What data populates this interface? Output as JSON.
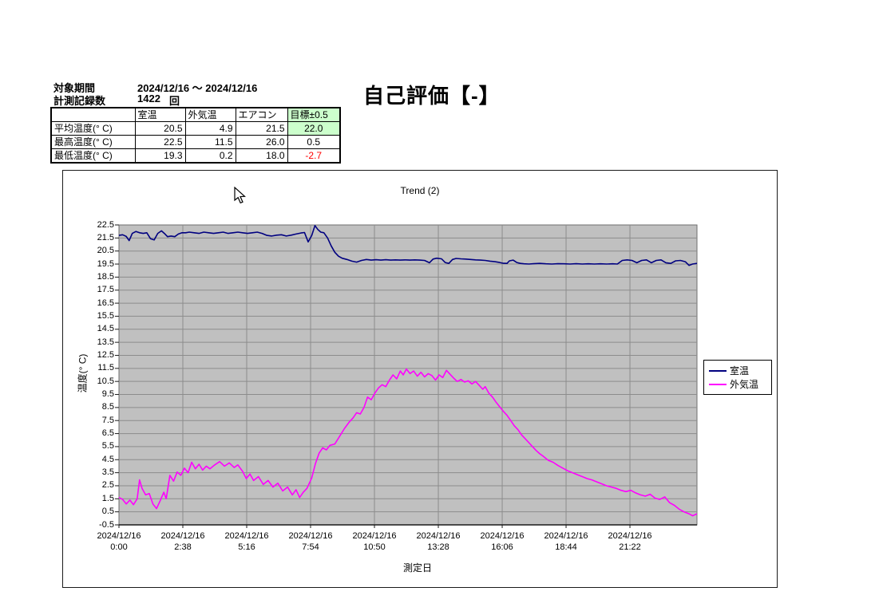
{
  "header": {
    "period_label": "対象期間",
    "period_value": "2024/12/16  ～  2024/12/16",
    "count_label": "計測記録数",
    "count_value": "1422",
    "count_unit": "回",
    "evaluation_title": "自己評価【-】"
  },
  "stats_table": {
    "columns": [
      "",
      "室温",
      "外気温",
      "エアコン",
      "目標±0.5"
    ],
    "rows": [
      {
        "label": "平均温度(° C)",
        "room": "20.5",
        "outside": "4.9",
        "aircon": "21.5",
        "target": "22.0"
      },
      {
        "label": "最高温度(° C)",
        "room": "22.5",
        "outside": "11.5",
        "aircon": "26.0",
        "target": "0.5"
      },
      {
        "label": "最低温度(° C)",
        "room": "19.3",
        "outside": "0.2",
        "aircon": "18.0",
        "target": "-2.7"
      }
    ],
    "highlight_color": "#ccffcc",
    "negative_color": "#ff0000"
  },
  "chart_data": {
    "type": "line",
    "title": "Trend (2)",
    "xlabel": "測定日",
    "ylabel": "温度(° C)",
    "ylim": [
      -0.5,
      22.5
    ],
    "y_tick_step": 1.0,
    "y_ticks": [
      "22.5",
      "21.5",
      "20.5",
      "19.5",
      "18.5",
      "17.5",
      "16.5",
      "15.5",
      "14.5",
      "13.5",
      "12.5",
      "11.5",
      "10.5",
      "9.5",
      "8.5",
      "7.5",
      "6.5",
      "5.5",
      "4.5",
      "3.5",
      "2.5",
      "1.5",
      "0.5",
      "-0.5"
    ],
    "xlim_hours": [
      0,
      23.83
    ],
    "x_tick_interval_hours": 2.6333,
    "x_tick_dates": [
      "2024/12/16",
      "2024/12/16",
      "2024/12/16",
      "2024/12/16",
      "2024/12/16",
      "2024/12/16",
      "2024/12/16",
      "2024/12/16",
      "2024/12/16"
    ],
    "x_tick_times": [
      "0:00",
      "2:38",
      "5:16",
      "7:54",
      "10:50",
      "13:28",
      "16:06",
      "18:44",
      "21:22"
    ],
    "plot_bg": "#c0c0c0",
    "grid_color": "#8c8c8c",
    "axis_color": "#1a1a1a",
    "legend_position": "right",
    "grid": true,
    "legend": [
      "室温",
      "外気温"
    ],
    "series": [
      {
        "name": "室温",
        "color": "#000080",
        "points": [
          [
            0,
            21.7
          ],
          [
            0.15,
            21.75
          ],
          [
            0.3,
            21.62
          ],
          [
            0.42,
            21.3
          ],
          [
            0.55,
            21.85
          ],
          [
            0.7,
            22.0
          ],
          [
            0.85,
            21.9
          ],
          [
            1.0,
            21.85
          ],
          [
            1.15,
            21.9
          ],
          [
            1.3,
            21.45
          ],
          [
            1.45,
            21.35
          ],
          [
            1.6,
            21.85
          ],
          [
            1.75,
            22.05
          ],
          [
            1.9,
            21.8
          ],
          [
            2.0,
            21.6
          ],
          [
            2.15,
            21.65
          ],
          [
            2.3,
            21.6
          ],
          [
            2.45,
            21.8
          ],
          [
            2.6,
            21.9
          ],
          [
            2.75,
            21.9
          ],
          [
            2.9,
            21.95
          ],
          [
            3.1,
            21.9
          ],
          [
            3.3,
            21.85
          ],
          [
            3.5,
            21.95
          ],
          [
            3.7,
            21.9
          ],
          [
            3.9,
            21.85
          ],
          [
            4.1,
            21.9
          ],
          [
            4.3,
            21.95
          ],
          [
            4.5,
            21.85
          ],
          [
            4.7,
            21.9
          ],
          [
            4.9,
            21.95
          ],
          [
            5.1,
            21.9
          ],
          [
            5.3,
            21.85
          ],
          [
            5.5,
            21.9
          ],
          [
            5.7,
            21.95
          ],
          [
            5.9,
            21.85
          ],
          [
            6.1,
            21.7
          ],
          [
            6.3,
            21.65
          ],
          [
            6.5,
            21.72
          ],
          [
            6.7,
            21.75
          ],
          [
            6.9,
            21.65
          ],
          [
            7.1,
            21.72
          ],
          [
            7.3,
            21.8
          ],
          [
            7.5,
            21.88
          ],
          [
            7.65,
            21.92
          ],
          [
            7.8,
            21.2
          ],
          [
            7.95,
            21.7
          ],
          [
            8.08,
            22.45
          ],
          [
            8.2,
            22.15
          ],
          [
            8.32,
            21.95
          ],
          [
            8.45,
            21.9
          ],
          [
            8.6,
            21.5
          ],
          [
            8.75,
            20.9
          ],
          [
            8.9,
            20.4
          ],
          [
            9.05,
            20.1
          ],
          [
            9.2,
            19.95
          ],
          [
            9.4,
            19.85
          ],
          [
            9.6,
            19.72
          ],
          [
            9.8,
            19.65
          ],
          [
            10.0,
            19.78
          ],
          [
            10.2,
            19.85
          ],
          [
            10.4,
            19.8
          ],
          [
            10.6,
            19.83
          ],
          [
            10.8,
            19.8
          ],
          [
            11.0,
            19.83
          ],
          [
            11.2,
            19.8
          ],
          [
            11.4,
            19.82
          ],
          [
            11.6,
            19.8
          ],
          [
            11.8,
            19.82
          ],
          [
            12.0,
            19.8
          ],
          [
            12.2,
            19.82
          ],
          [
            12.4,
            19.8
          ],
          [
            12.6,
            19.78
          ],
          [
            12.8,
            19.6
          ],
          [
            12.95,
            19.88
          ],
          [
            13.1,
            19.95
          ],
          [
            13.3,
            19.9
          ],
          [
            13.45,
            19.62
          ],
          [
            13.6,
            19.55
          ],
          [
            13.75,
            19.85
          ],
          [
            13.9,
            19.93
          ],
          [
            14.1,
            19.9
          ],
          [
            14.3,
            19.88
          ],
          [
            14.5,
            19.85
          ],
          [
            14.7,
            19.82
          ],
          [
            14.9,
            19.8
          ],
          [
            15.1,
            19.78
          ],
          [
            15.3,
            19.72
          ],
          [
            15.5,
            19.68
          ],
          [
            15.7,
            19.62
          ],
          [
            15.85,
            19.56
          ],
          [
            16.0,
            19.55
          ],
          [
            16.1,
            19.75
          ],
          [
            16.25,
            19.8
          ],
          [
            16.4,
            19.62
          ],
          [
            16.55,
            19.55
          ],
          [
            16.7,
            19.52
          ],
          [
            16.9,
            19.5
          ],
          [
            17.1,
            19.53
          ],
          [
            17.35,
            19.55
          ],
          [
            17.6,
            19.52
          ],
          [
            17.85,
            19.5
          ],
          [
            18.1,
            19.53
          ],
          [
            18.35,
            19.52
          ],
          [
            18.6,
            19.5
          ],
          [
            18.85,
            19.53
          ],
          [
            19.1,
            19.5
          ],
          [
            19.35,
            19.52
          ],
          [
            19.6,
            19.5
          ],
          [
            19.85,
            19.52
          ],
          [
            20.1,
            19.5
          ],
          [
            20.35,
            19.52
          ],
          [
            20.55,
            19.5
          ],
          [
            20.75,
            19.78
          ],
          [
            20.95,
            19.82
          ],
          [
            21.15,
            19.78
          ],
          [
            21.35,
            19.6
          ],
          [
            21.55,
            19.78
          ],
          [
            21.75,
            19.82
          ],
          [
            21.95,
            19.6
          ],
          [
            22.15,
            19.78
          ],
          [
            22.35,
            19.82
          ],
          [
            22.55,
            19.6
          ],
          [
            22.75,
            19.55
          ],
          [
            22.95,
            19.75
          ],
          [
            23.15,
            19.78
          ],
          [
            23.35,
            19.68
          ],
          [
            23.5,
            19.4
          ],
          [
            23.65,
            19.5
          ],
          [
            23.83,
            19.55
          ]
        ]
      },
      {
        "name": "外気温",
        "color": "#ff00ff",
        "points": [
          [
            0,
            1.6
          ],
          [
            0.15,
            1.45
          ],
          [
            0.3,
            1.1
          ],
          [
            0.45,
            1.4
          ],
          [
            0.6,
            1.05
          ],
          [
            0.75,
            1.5
          ],
          [
            0.85,
            2.95
          ],
          [
            0.95,
            2.3
          ],
          [
            1.1,
            1.8
          ],
          [
            1.25,
            1.9
          ],
          [
            1.4,
            1.1
          ],
          [
            1.55,
            0.75
          ],
          [
            1.7,
            1.35
          ],
          [
            1.85,
            2.0
          ],
          [
            1.95,
            1.5
          ],
          [
            2.1,
            3.3
          ],
          [
            2.25,
            2.85
          ],
          [
            2.4,
            3.55
          ],
          [
            2.55,
            3.3
          ],
          [
            2.7,
            3.85
          ],
          [
            2.85,
            3.5
          ],
          [
            3.0,
            4.3
          ],
          [
            3.15,
            3.8
          ],
          [
            3.3,
            4.15
          ],
          [
            3.45,
            3.7
          ],
          [
            3.6,
            4.0
          ],
          [
            3.75,
            3.8
          ],
          [
            3.95,
            4.1
          ],
          [
            4.15,
            4.35
          ],
          [
            4.35,
            4.0
          ],
          [
            4.55,
            4.25
          ],
          [
            4.75,
            3.9
          ],
          [
            4.9,
            4.1
          ],
          [
            5.1,
            3.6
          ],
          [
            5.25,
            3.05
          ],
          [
            5.4,
            3.4
          ],
          [
            5.55,
            2.9
          ],
          [
            5.75,
            3.2
          ],
          [
            5.95,
            2.6
          ],
          [
            6.15,
            2.9
          ],
          [
            6.35,
            2.4
          ],
          [
            6.55,
            2.7
          ],
          [
            6.75,
            2.1
          ],
          [
            6.95,
            2.4
          ],
          [
            7.15,
            1.8
          ],
          [
            7.3,
            2.2
          ],
          [
            7.45,
            1.6
          ],
          [
            7.6,
            2.0
          ],
          [
            7.75,
            2.3
          ],
          [
            7.95,
            3.1
          ],
          [
            8.1,
            4.2
          ],
          [
            8.25,
            5.0
          ],
          [
            8.4,
            5.4
          ],
          [
            8.55,
            5.25
          ],
          [
            8.7,
            5.6
          ],
          [
            8.9,
            5.7
          ],
          [
            9.1,
            6.3
          ],
          [
            9.3,
            6.9
          ],
          [
            9.5,
            7.4
          ],
          [
            9.65,
            7.7
          ],
          [
            9.8,
            8.1
          ],
          [
            9.95,
            8.0
          ],
          [
            10.1,
            8.5
          ],
          [
            10.25,
            9.3
          ],
          [
            10.4,
            9.1
          ],
          [
            10.55,
            9.6
          ],
          [
            10.7,
            10.0
          ],
          [
            10.85,
            10.25
          ],
          [
            11.0,
            10.1
          ],
          [
            11.15,
            10.6
          ],
          [
            11.3,
            11.0
          ],
          [
            11.45,
            10.7
          ],
          [
            11.6,
            11.3
          ],
          [
            11.72,
            11.0
          ],
          [
            11.85,
            11.45
          ],
          [
            12.0,
            11.1
          ],
          [
            12.15,
            11.3
          ],
          [
            12.3,
            10.9
          ],
          [
            12.45,
            11.2
          ],
          [
            12.6,
            10.85
          ],
          [
            12.75,
            11.1
          ],
          [
            12.9,
            10.95
          ],
          [
            13.05,
            10.6
          ],
          [
            13.2,
            11.0
          ],
          [
            13.35,
            10.8
          ],
          [
            13.5,
            11.35
          ],
          [
            13.65,
            11.05
          ],
          [
            13.8,
            10.75
          ],
          [
            13.95,
            10.5
          ],
          [
            14.1,
            10.65
          ],
          [
            14.25,
            10.45
          ],
          [
            14.4,
            10.55
          ],
          [
            14.55,
            10.3
          ],
          [
            14.7,
            10.5
          ],
          [
            14.85,
            10.2
          ],
          [
            15.0,
            9.9
          ],
          [
            15.1,
            10.1
          ],
          [
            15.25,
            9.6
          ],
          [
            15.4,
            9.3
          ],
          [
            15.55,
            8.9
          ],
          [
            15.7,
            8.55
          ],
          [
            15.85,
            8.2
          ],
          [
            16.0,
            7.9
          ],
          [
            16.15,
            7.5
          ],
          [
            16.3,
            7.1
          ],
          [
            16.45,
            6.8
          ],
          [
            16.6,
            6.4
          ],
          [
            16.75,
            6.1
          ],
          [
            16.9,
            5.8
          ],
          [
            17.05,
            5.5
          ],
          [
            17.2,
            5.2
          ],
          [
            17.35,
            4.95
          ],
          [
            17.5,
            4.75
          ],
          [
            17.7,
            4.45
          ],
          [
            17.9,
            4.3
          ],
          [
            18.1,
            4.05
          ],
          [
            18.3,
            3.85
          ],
          [
            18.5,
            3.65
          ],
          [
            18.7,
            3.5
          ],
          [
            18.9,
            3.35
          ],
          [
            19.1,
            3.2
          ],
          [
            19.3,
            3.05
          ],
          [
            19.5,
            2.95
          ],
          [
            19.7,
            2.8
          ],
          [
            19.9,
            2.65
          ],
          [
            20.1,
            2.5
          ],
          [
            20.3,
            2.4
          ],
          [
            20.5,
            2.3
          ],
          [
            20.7,
            2.15
          ],
          [
            20.9,
            2.05
          ],
          [
            21.1,
            2.15
          ],
          [
            21.3,
            1.95
          ],
          [
            21.5,
            1.8
          ],
          [
            21.7,
            1.7
          ],
          [
            21.9,
            1.85
          ],
          [
            22.1,
            1.55
          ],
          [
            22.3,
            1.45
          ],
          [
            22.5,
            1.65
          ],
          [
            22.7,
            1.2
          ],
          [
            22.9,
            1.0
          ],
          [
            23.1,
            0.7
          ],
          [
            23.3,
            0.5
          ],
          [
            23.5,
            0.35
          ],
          [
            23.65,
            0.2
          ],
          [
            23.83,
            0.35
          ]
        ]
      }
    ]
  }
}
